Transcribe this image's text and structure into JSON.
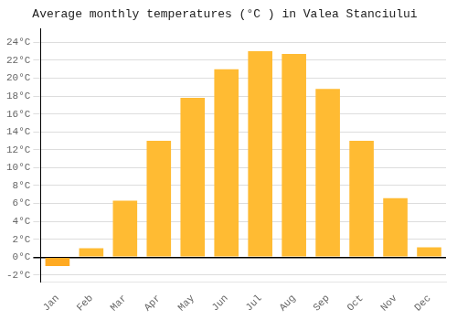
{
  "chart_data": {
    "type": "bar",
    "title": "Average monthly temperatures (°C ) in Valea Stanciului",
    "categories": [
      "Jan",
      "Feb",
      "Mar",
      "Apr",
      "May",
      "Jun",
      "Jul",
      "Aug",
      "Sep",
      "Oct",
      "Nov",
      "Dec"
    ],
    "values": [
      -1.0,
      1.0,
      6.3,
      13.0,
      17.8,
      21.0,
      23.0,
      22.7,
      18.8,
      13.0,
      6.6,
      1.1
    ],
    "colors": [
      "#FFAA22",
      "#FFBB33",
      "#FFBB33",
      "#FFBB33",
      "#FFBB33",
      "#FFBB33",
      "#FFBB33",
      "#FFBB33",
      "#FFBB33",
      "#FFBB33",
      "#FFBB33",
      "#FFBB33"
    ],
    "ylim": [
      -2.8,
      25.5
    ],
    "yticks": [
      {
        "value": -2,
        "label": "-2°C"
      },
      {
        "value": 0,
        "label": "0°C"
      },
      {
        "value": 2,
        "label": "2°C"
      },
      {
        "value": 4,
        "label": "4°C"
      },
      {
        "value": 6,
        "label": "6°C"
      },
      {
        "value": 8,
        "label": "8°C"
      },
      {
        "value": 10,
        "label": "10°C"
      },
      {
        "value": 12,
        "label": "12°C"
      },
      {
        "value": 14,
        "label": "14°C"
      },
      {
        "value": 16,
        "label": "16°C"
      },
      {
        "value": 18,
        "label": "18°C"
      },
      {
        "value": 20,
        "label": "20°C"
      },
      {
        "value": 22,
        "label": "22°C"
      },
      {
        "value": 24,
        "label": "24°C"
      }
    ],
    "grid": true
  }
}
